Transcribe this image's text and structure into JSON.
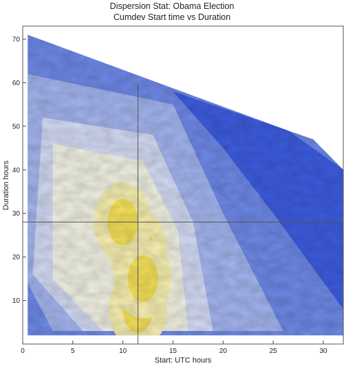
{
  "chart_data": {
    "type": "heatmap",
    "subtype": "filled-contour",
    "title": "Dispersion Stat: Obama Election",
    "subtitle": "Cumdev Start time vs Duration",
    "xlabel": "Start: UTC hours",
    "ylabel": "Duration hours",
    "xlim": [
      0,
      32
    ],
    "ylim": [
      0,
      73
    ],
    "x_ticks": [
      0,
      5,
      10,
      15,
      20,
      25,
      30
    ],
    "y_ticks": [
      10,
      20,
      30,
      40,
      50,
      60,
      70
    ],
    "reference_lines": {
      "x": 11.5,
      "y": 28
    },
    "data_region_upper_edge": [
      [
        0.5,
        71
      ],
      [
        26.5,
        49
      ]
    ],
    "density_peaks": [
      {
        "x": 11.5,
        "y": 22,
        "level": "high"
      },
      {
        "x": 11.5,
        "y": 8,
        "level": "high"
      },
      {
        "x": 10,
        "y": 28,
        "level": "high"
      },
      {
        "x": 12,
        "y": 15,
        "level": "high"
      }
    ],
    "colormap": [
      "#3d5de0",
      "#6f8ae8",
      "#a5b6f0",
      "#d4dcf5",
      "#f2f2e4",
      "#f8f0b0",
      "#f6e25a"
    ],
    "grid": false,
    "legend": "none"
  }
}
